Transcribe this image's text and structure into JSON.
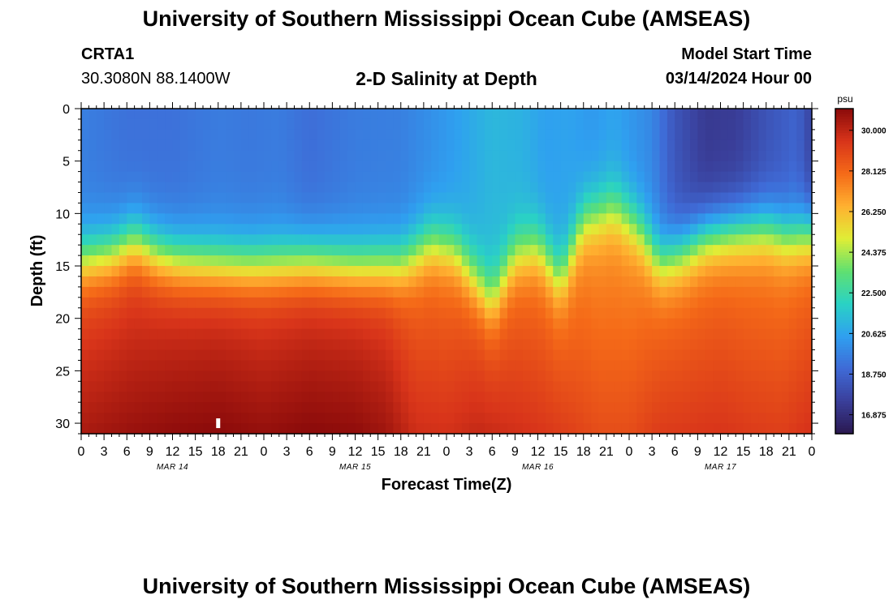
{
  "header": {
    "title": "University of Southern Mississippi Ocean Cube (AMSEAS)",
    "station": "CRTA1",
    "coords": "30.3080N  88.1400W",
    "plot_title": "2-D Salinity at Depth",
    "start_label": "Model Start Time",
    "start_value": "03/14/2024 Hour 00"
  },
  "footer": {
    "title": "University of Southern Mississippi Ocean Cube (AMSEAS)"
  },
  "chart_data": {
    "type": "heatmap",
    "title": "2-D Salinity at Depth",
    "xlabel": "Forecast Time(Z)",
    "ylabel": "Depth (ft)",
    "x_hours": [
      0,
      96
    ],
    "x_tick_step_hours": 3,
    "x_tick_labels": [
      "0",
      "3",
      "6",
      "9",
      "12",
      "15",
      "18",
      "21",
      "0",
      "3",
      "6",
      "9",
      "12",
      "15",
      "18",
      "21",
      "0",
      "3",
      "6",
      "9",
      "12",
      "15",
      "18",
      "21",
      "0",
      "3",
      "6",
      "9",
      "12",
      "15",
      "18",
      "21",
      "0"
    ],
    "date_labels": [
      {
        "label": "MAR 14",
        "hour": 12
      },
      {
        "label": "MAR 15",
        "hour": 36
      },
      {
        "label": "MAR 16",
        "hour": 60
      },
      {
        "label": "MAR 17",
        "hour": 84
      }
    ],
    "ylim": [
      0,
      31
    ],
    "y_ticks": [
      0,
      5,
      10,
      15,
      20,
      25,
      30
    ],
    "colorbar": {
      "unit": "psu",
      "range": [
        16,
        31
      ],
      "ticks": [
        "30.000",
        "28.125",
        "26.250",
        "24.375",
        "22.500",
        "20.625",
        "18.750",
        "16.875"
      ],
      "colors": [
        "#2a1850",
        "#3a3f9a",
        "#3f6ad6",
        "#2fa0f0",
        "#2ad2c4",
        "#60e070",
        "#e0ee36",
        "#ffb030",
        "#f56a18",
        "#d8341a",
        "#8a0a0a"
      ]
    },
    "marker": {
      "hour": 18,
      "depth": 30
    },
    "surface_salinity": {
      "hours": [
        0,
        6,
        12,
        18,
        22,
        26,
        30,
        36,
        42,
        48,
        54,
        58,
        61,
        64,
        67,
        70,
        75,
        78,
        82,
        86,
        90,
        94,
        96
      ],
      "values": [
        19.6,
        19.2,
        19.2,
        19.5,
        19.4,
        19.5,
        19.1,
        19.5,
        19.6,
        20.3,
        21.2,
        21.0,
        20.5,
        20.6,
        20.3,
        20.6,
        19.8,
        18.3,
        17.3,
        17.4,
        18.2,
        18.8,
        17.6
      ]
    },
    "halocline_depth_ft": {
      "hours": [
        0,
        4,
        7,
        10,
        13,
        18,
        22,
        26,
        30,
        36,
        42,
        46,
        49,
        54,
        57,
        60,
        63,
        66,
        70,
        73,
        76,
        79,
        82,
        86,
        90,
        93,
        96
      ],
      "values": [
        14.2,
        13.6,
        12.4,
        13.7,
        14.3,
        14.6,
        14.7,
        14.6,
        14.4,
        14.8,
        14.6,
        12.6,
        13.3,
        18.2,
        13.8,
        13.0,
        16.2,
        10.5,
        9.2,
        11.1,
        14.4,
        13.5,
        12.0,
        11.4,
        11.2,
        12.0,
        11.6
      ]
    },
    "bottom_salinity": {
      "hours": [
        0,
        6,
        12,
        18,
        24,
        30,
        36,
        40,
        44,
        48,
        52,
        56,
        60,
        64,
        68,
        72,
        76,
        80,
        84,
        88,
        92,
        96
      ],
      "values": [
        30.4,
        30.7,
        30.9,
        31.0,
        30.8,
        31.0,
        30.9,
        30.6,
        29.7,
        29.6,
        29.9,
        29.7,
        29.5,
        29.2,
        28.8,
        28.8,
        29.3,
        29.4,
        29.5,
        29.3,
        29.2,
        29.6
      ]
    }
  }
}
